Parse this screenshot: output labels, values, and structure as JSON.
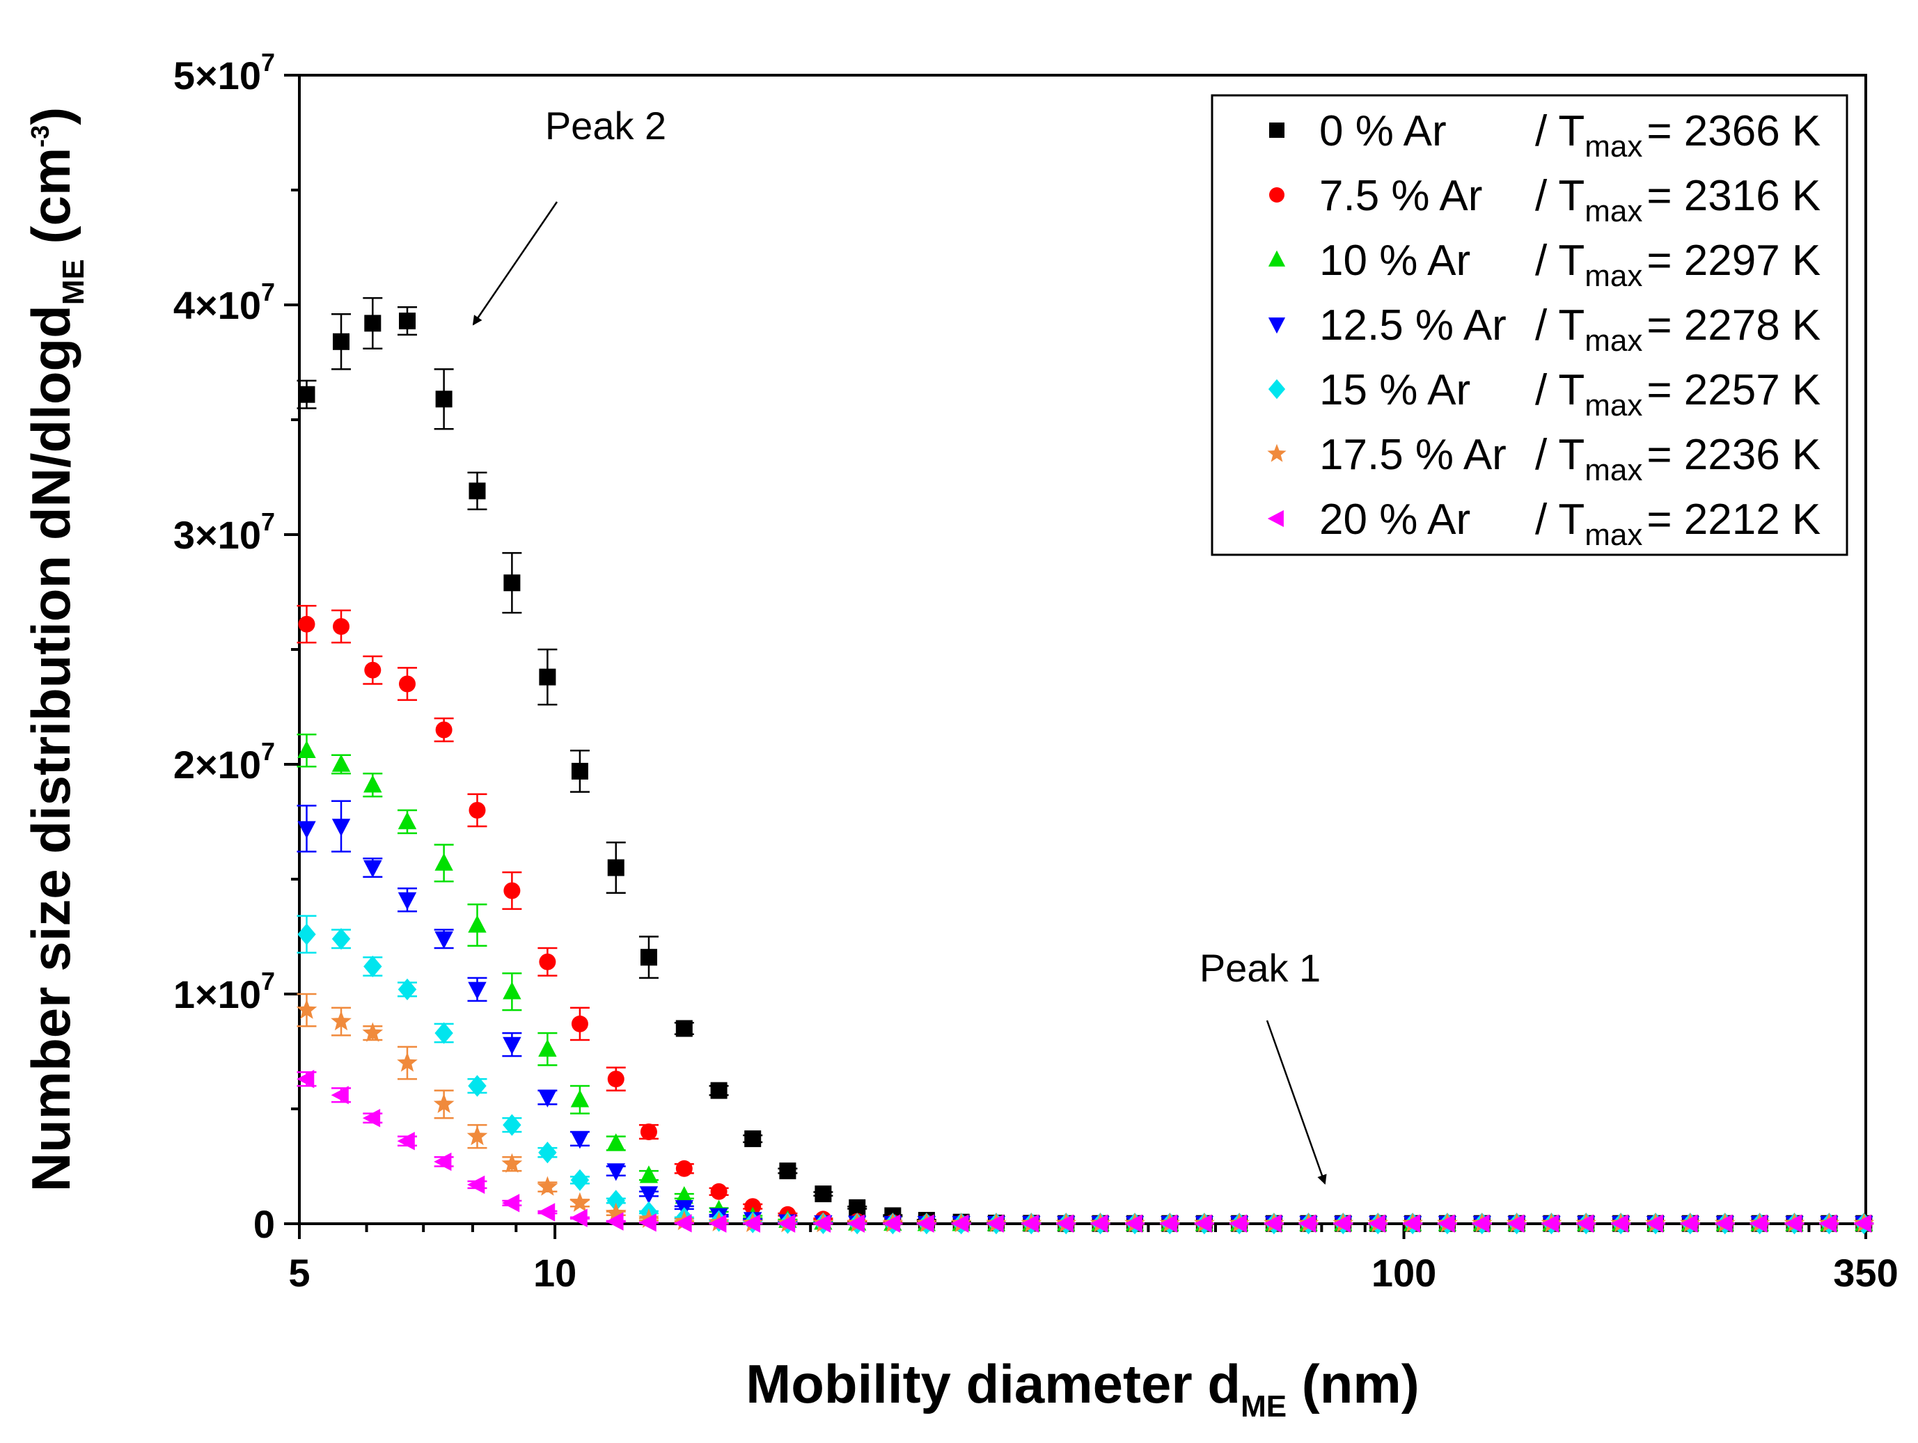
{
  "chart_data": {
    "type": "scatter",
    "xscale": "log",
    "xlim": [
      5,
      350
    ],
    "ylim": [
      0,
      50000000
    ],
    "xlabel": {
      "main": "Mobility diameter d",
      "sub": "ME",
      "unit": " (nm)"
    },
    "ylabel": {
      "main": "Number size distribution dN/dlogd",
      "sub": "ME",
      "unit_open": " (cm",
      "sup": "-3",
      "unit_close": ")"
    },
    "xticks": [
      {
        "value": 5,
        "label": "5"
      },
      {
        "value": 10,
        "label": "10"
      },
      {
        "value": 100,
        "label": "100"
      },
      {
        "value": 350,
        "label": "350"
      }
    ],
    "yticks": [
      {
        "value": 0,
        "base": "0",
        "exp": ""
      },
      {
        "value": 10000000,
        "base": "1×10",
        "exp": "7"
      },
      {
        "value": 20000000,
        "base": "2×10",
        "exp": "7"
      },
      {
        "value": 30000000,
        "base": "3×10",
        "exp": "7"
      },
      {
        "value": 40000000,
        "base": "4×10",
        "exp": "7"
      },
      {
        "value": 50000000,
        "base": "5×10",
        "exp": "7"
      }
    ],
    "x": [
      5.1,
      5.6,
      6.1,
      6.7,
      7.4,
      8.1,
      8.9,
      9.8,
      10.7,
      11.8,
      12.9,
      14.2,
      15.6,
      17.1,
      18.8,
      20.7,
      22.7,
      25,
      27.4,
      30.1,
      33.1,
      36.4,
      40,
      43.9,
      48.2,
      53,
      58.2,
      64,
      70.3,
      77.2,
      84.8,
      93.2,
      102.4,
      112.5,
      123.6,
      135.8,
      149.2,
      163.9,
      180.1,
      197.9,
      217.4,
      238.9,
      262.5,
      288.4,
      316.9,
      348.2
    ],
    "series": [
      {
        "name": "0 % Ar",
        "tmax": "= 2366 K",
        "color": "#000000",
        "marker": "square",
        "values": [
          36.1,
          38.4,
          39.2,
          39.3,
          35.9,
          31.9,
          27.9,
          23.8,
          19.7,
          15.5,
          11.6,
          8.5,
          5.8,
          3.7,
          2.3,
          1.3,
          0.7,
          0.35,
          0.15,
          0.07,
          0.03,
          0.02,
          0.01,
          0.01,
          0.01,
          0.01,
          0.01,
          0.01,
          0.01,
          0.01,
          0.01,
          0.01,
          0.01,
          0.01,
          0.01,
          0.01,
          0.01,
          0.01,
          0.01,
          0.01,
          0.01,
          0.01,
          0.01,
          0.01,
          0.01,
          0.01
        ],
        "errors": [
          0.6,
          1.2,
          1.1,
          0.6,
          1.3,
          0.8,
          1.3,
          1.2,
          0.9,
          1.1,
          0.9,
          0.25,
          0.2,
          0.15,
          0.1,
          0.08,
          0.05,
          0.03,
          0.02,
          0.01,
          0.01,
          0.01,
          0.01,
          0.01,
          0.01,
          0.01,
          0.01,
          0.01,
          0.01,
          0.01,
          0.01,
          0.01,
          0.01,
          0.01,
          0.01,
          0.01,
          0.01,
          0.01,
          0.01,
          0.01,
          0.01,
          0.01,
          0.01,
          0.01,
          0.01,
          0.01
        ]
      },
      {
        "name": "7.5 % Ar",
        "tmax": "= 2316 K",
        "color": "#ff0000",
        "marker": "circle",
        "values": [
          26.1,
          26.0,
          24.1,
          23.5,
          21.5,
          18.0,
          14.5,
          11.4,
          8.7,
          6.3,
          4.0,
          2.4,
          1.4,
          0.75,
          0.4,
          0.2,
          0.1,
          0.05,
          0.03,
          0.02,
          0.01,
          0.01,
          0.01,
          0.01,
          0.01,
          0.01,
          0.01,
          0.01,
          0.01,
          0.01,
          0.01,
          0.01,
          0.01,
          0.01,
          0.01,
          0.01,
          0.01,
          0.01,
          0.01,
          0.01,
          0.01,
          0.01,
          0.01,
          0.01,
          0.01,
          0.01
        ],
        "errors": [
          0.8,
          0.7,
          0.6,
          0.7,
          0.5,
          0.7,
          0.8,
          0.6,
          0.7,
          0.5,
          0.3,
          0.2,
          0.15,
          0.1,
          0.05,
          0.03,
          0.02,
          0.01,
          0.01,
          0.01,
          0.01,
          0.01,
          0.01,
          0.01,
          0.01,
          0.01,
          0.01,
          0.01,
          0.01,
          0.01,
          0.01,
          0.01,
          0.01,
          0.01,
          0.01,
          0.01,
          0.01,
          0.01,
          0.01,
          0.01,
          0.01,
          0.01,
          0.01,
          0.01,
          0.01,
          0.01
        ]
      },
      {
        "name": "10 % Ar",
        "tmax": "= 2297 K",
        "color": "#00e000",
        "marker": "triangle-up",
        "values": [
          20.6,
          20.0,
          19.1,
          17.5,
          15.7,
          13.0,
          10.1,
          7.6,
          5.4,
          3.5,
          2.1,
          1.2,
          0.6,
          0.3,
          0.15,
          0.07,
          0.03,
          0.02,
          0.01,
          0.01,
          0.01,
          0.01,
          0.01,
          0.01,
          0.01,
          0.01,
          0.01,
          0.01,
          0.01,
          0.01,
          0.01,
          0.01,
          0.01,
          0.01,
          0.01,
          0.01,
          0.01,
          0.01,
          0.01,
          0.01,
          0.01,
          0.01,
          0.01,
          0.01,
          0.01,
          0.01
        ],
        "errors": [
          0.7,
          0.4,
          0.5,
          0.5,
          0.8,
          0.9,
          0.8,
          0.7,
          0.6,
          0.3,
          0.2,
          0.1,
          0.08,
          0.05,
          0.03,
          0.02,
          0.01,
          0.01,
          0.01,
          0.01,
          0.01,
          0.01,
          0.01,
          0.01,
          0.01,
          0.01,
          0.01,
          0.01,
          0.01,
          0.01,
          0.01,
          0.01,
          0.01,
          0.01,
          0.01,
          0.01,
          0.01,
          0.01,
          0.01,
          0.01,
          0.01,
          0.01,
          0.01,
          0.01,
          0.01,
          0.01
        ]
      },
      {
        "name": "12.5 % Ar",
        "tmax": "= 2278 K",
        "color": "#0000ff",
        "marker": "triangle-down",
        "values": [
          17.2,
          17.3,
          15.5,
          14.1,
          12.4,
          10.2,
          7.8,
          5.5,
          3.7,
          2.3,
          1.3,
          0.7,
          0.35,
          0.18,
          0.08,
          0.04,
          0.02,
          0.01,
          0.01,
          0.01,
          0.01,
          0.01,
          0.01,
          0.01,
          0.01,
          0.01,
          0.01,
          0.01,
          0.01,
          0.01,
          0.01,
          0.01,
          0.01,
          0.01,
          0.01,
          0.01,
          0.01,
          0.01,
          0.01,
          0.01,
          0.01,
          0.01,
          0.01,
          0.01,
          0.01,
          0.01
        ],
        "errors": [
          1.0,
          1.1,
          0.4,
          0.5,
          0.4,
          0.5,
          0.5,
          0.3,
          0.3,
          0.2,
          0.1,
          0.06,
          0.04,
          0.02,
          0.01,
          0.01,
          0.01,
          0.01,
          0.01,
          0.01,
          0.01,
          0.01,
          0.01,
          0.01,
          0.01,
          0.01,
          0.01,
          0.01,
          0.01,
          0.01,
          0.01,
          0.01,
          0.01,
          0.01,
          0.01,
          0.01,
          0.01,
          0.01,
          0.01,
          0.01,
          0.01,
          0.01,
          0.01,
          0.01,
          0.01,
          0.01
        ]
      },
      {
        "name": "15 % Ar",
        "tmax": "= 2257 K",
        "color": "#00e5ee",
        "marker": "diamond",
        "values": [
          12.6,
          12.4,
          11.2,
          10.2,
          8.3,
          6.0,
          4.3,
          3.1,
          1.9,
          1.0,
          0.5,
          0.25,
          0.12,
          0.06,
          0.03,
          0.02,
          0.01,
          0.01,
          0.01,
          0.01,
          0.01,
          0.01,
          0.01,
          0.01,
          0.01,
          0.01,
          0.01,
          0.01,
          0.01,
          0.01,
          0.01,
          0.01,
          0.01,
          0.01,
          0.01,
          0.01,
          0.01,
          0.01,
          0.01,
          0.01,
          0.01,
          0.01,
          0.01,
          0.01,
          0.01,
          0.01
        ],
        "errors": [
          0.8,
          0.4,
          0.4,
          0.3,
          0.4,
          0.3,
          0.3,
          0.2,
          0.15,
          0.1,
          0.05,
          0.03,
          0.02,
          0.01,
          0.01,
          0.01,
          0.01,
          0.01,
          0.01,
          0.01,
          0.01,
          0.01,
          0.01,
          0.01,
          0.01,
          0.01,
          0.01,
          0.01,
          0.01,
          0.01,
          0.01,
          0.01,
          0.01,
          0.01,
          0.01,
          0.01,
          0.01,
          0.01,
          0.01,
          0.01,
          0.01,
          0.01,
          0.01,
          0.01,
          0.01,
          0.01
        ]
      },
      {
        "name": "17.5 % Ar",
        "tmax": "= 2236 K",
        "color": "#f08a3c",
        "marker": "star",
        "values": [
          9.3,
          8.8,
          8.3,
          7.0,
          5.2,
          3.8,
          2.6,
          1.6,
          0.9,
          0.45,
          0.2,
          0.1,
          0.05,
          0.02,
          0.01,
          0.01,
          0.01,
          0.01,
          0.01,
          0.01,
          0.01,
          0.01,
          0.01,
          0.01,
          0.01,
          0.01,
          0.01,
          0.01,
          0.01,
          0.01,
          0.01,
          0.01,
          0.01,
          0.01,
          0.01,
          0.01,
          0.01,
          0.01,
          0.01,
          0.01,
          0.01,
          0.01,
          0.01,
          0.01,
          0.01,
          0.01
        ],
        "errors": [
          0.7,
          0.6,
          0.3,
          0.7,
          0.6,
          0.5,
          0.3,
          0.2,
          0.15,
          0.08,
          0.05,
          0.02,
          0.01,
          0.01,
          0.01,
          0.01,
          0.01,
          0.01,
          0.01,
          0.01,
          0.01,
          0.01,
          0.01,
          0.01,
          0.01,
          0.01,
          0.01,
          0.01,
          0.01,
          0.01,
          0.01,
          0.01,
          0.01,
          0.01,
          0.01,
          0.01,
          0.01,
          0.01,
          0.01,
          0.01,
          0.01,
          0.01,
          0.01,
          0.01,
          0.01,
          0.01
        ]
      },
      {
        "name": "20 % Ar",
        "tmax": "= 2212 K",
        "color": "#ff00ff",
        "marker": "triangle-left",
        "values": [
          6.3,
          5.6,
          4.6,
          3.6,
          2.7,
          1.7,
          0.9,
          0.5,
          0.25,
          0.1,
          0.05,
          0.02,
          0.01,
          0.01,
          0.01,
          0.01,
          0.01,
          0.01,
          0.01,
          0.01,
          0.01,
          0.01,
          0.01,
          0.01,
          0.01,
          0.01,
          0.01,
          0.01,
          0.01,
          0.01,
          0.01,
          0.01,
          0.01,
          0.01,
          0.01,
          0.01,
          0.01,
          0.01,
          0.01,
          0.01,
          0.01,
          0.01,
          0.01,
          0.01,
          0.01,
          0.01
        ],
        "errors": [
          0.3,
          0.3,
          0.2,
          0.2,
          0.2,
          0.15,
          0.1,
          0.05,
          0.03,
          0.02,
          0.01,
          0.01,
          0.01,
          0.01,
          0.01,
          0.01,
          0.01,
          0.01,
          0.01,
          0.01,
          0.01,
          0.01,
          0.01,
          0.01,
          0.01,
          0.01,
          0.01,
          0.01,
          0.01,
          0.01,
          0.01,
          0.01,
          0.01,
          0.01,
          0.01,
          0.01,
          0.01,
          0.01,
          0.01,
          0.01,
          0.01,
          0.01,
          0.01,
          0.01,
          0.01,
          0.01
        ]
      }
    ],
    "value_unit_note": "values and errors in units of 1e6 cm^-3",
    "legend": {
      "placement": "top-right",
      "tmax_prefix": "/ T",
      "tmax_sub": "max"
    },
    "annotations": [
      {
        "text": "Peak 2",
        "points_to": {
          "x": 7.0,
          "y": 39000000
        }
      },
      {
        "text": "Peak 1",
        "points_to": {
          "x": 80,
          "y": 500000
        }
      }
    ]
  }
}
